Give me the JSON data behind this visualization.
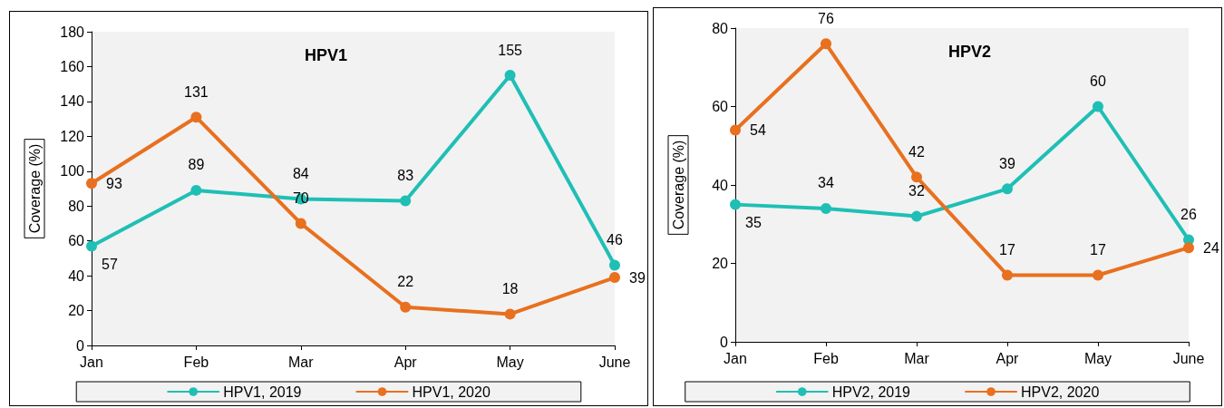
{
  "chart_data": [
    {
      "type": "line",
      "title": "HPV1",
      "ylabel": "Coverage (%)",
      "categories": [
        "Jan",
        "Feb",
        "Mar",
        "Apr",
        "May",
        "June"
      ],
      "series": [
        {
          "name": "HPV1, 2019",
          "color": "#1fbfb5",
          "values": [
            57,
            89,
            84,
            83,
            155,
            46
          ]
        },
        {
          "name": "HPV1, 2020",
          "color": "#e8701f",
          "values": [
            93,
            131,
            70,
            22,
            18,
            39
          ]
        }
      ],
      "ylim": [
        0,
        180
      ],
      "yticks": [
        0,
        20,
        40,
        60,
        80,
        100,
        120,
        140,
        160,
        180
      ],
      "grid": false,
      "legend": "bottom",
      "marker": "circle",
      "line_style": "solid",
      "data_labels": true
    },
    {
      "type": "line",
      "title": "HPV2",
      "ylabel": "Coverage (%)",
      "categories": [
        "Jan",
        "Feb",
        "Mar",
        "Apr",
        "May",
        "June"
      ],
      "series": [
        {
          "name": "HPV2, 2019",
          "color": "#1fbfb5",
          "values": [
            35,
            34,
            32,
            39,
            60,
            26
          ]
        },
        {
          "name": "HPV2, 2020",
          "color": "#e8701f",
          "values": [
            54,
            76,
            42,
            17,
            17,
            24
          ]
        }
      ],
      "ylim": [
        0,
        80
      ],
      "yticks": [
        0,
        20,
        40,
        60,
        80
      ],
      "grid": false,
      "legend": "bottom",
      "marker": "circle",
      "line_style": "solid",
      "data_labels": true
    }
  ]
}
